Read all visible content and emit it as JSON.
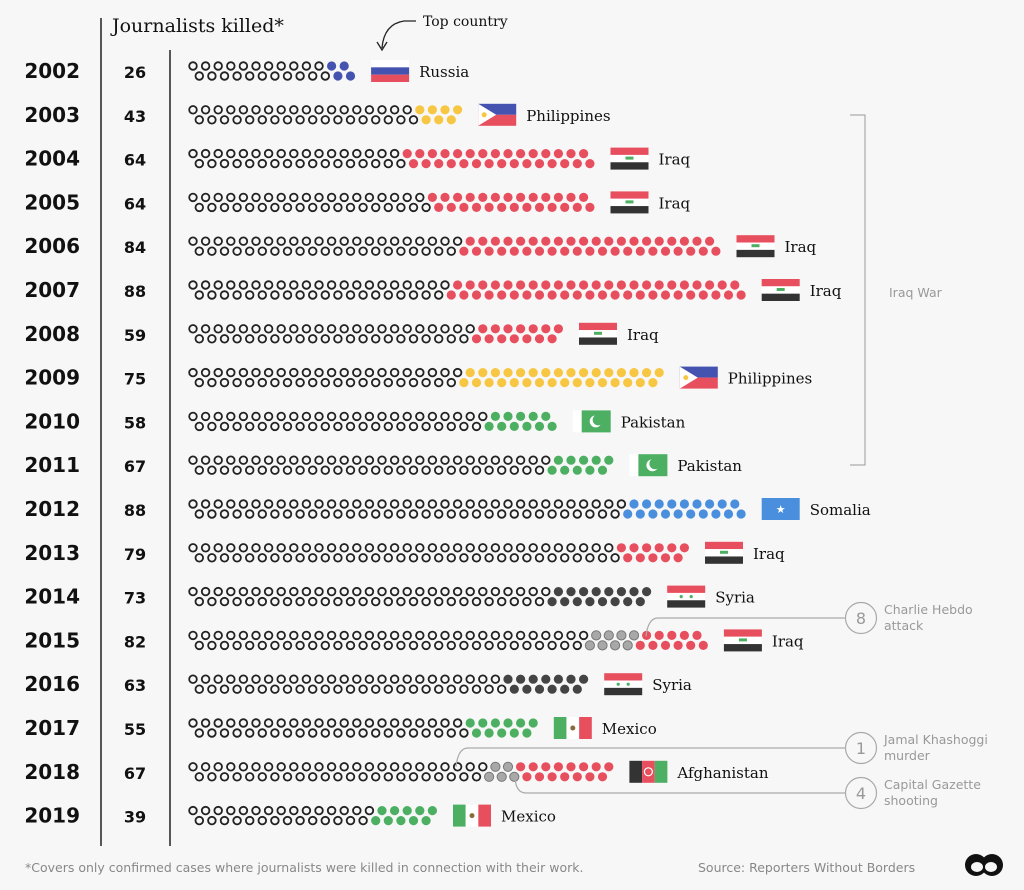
{
  "chart_data": {
    "type": "dot-matrix",
    "title": "Journalists killed*",
    "top_country_label": "Top country",
    "colors": {
      "outline": "#222222",
      "highlight": "#a8a8a8",
      "Russia": "#4452b0",
      "Philippines": "#f7c744",
      "Iraq": "#e84f5e",
      "Pakistan": "#4caf62",
      "Somalia": "#4a8fde",
      "Syria": "#444444",
      "Mexico": "#4caf62",
      "Afghanistan": "#e84f5e"
    },
    "rows": [
      {
        "year": "2002",
        "total": 26,
        "country": "Russia",
        "country_killed": 4
      },
      {
        "year": "2003",
        "total": 43,
        "country": "Philippines",
        "country_killed": 7
      },
      {
        "year": "2004",
        "total": 64,
        "country": "Iraq",
        "country_killed": 30
      },
      {
        "year": "2005",
        "total": 64,
        "country": "Iraq",
        "country_killed": 26
      },
      {
        "year": "2006",
        "total": 84,
        "country": "Iraq",
        "country_killed": 41
      },
      {
        "year": "2007",
        "total": 88,
        "country": "Iraq",
        "country_killed": 47
      },
      {
        "year": "2008",
        "total": 59,
        "country": "Iraq",
        "country_killed": 14
      },
      {
        "year": "2009",
        "total": 75,
        "country": "Philippines",
        "country_killed": 32
      },
      {
        "year": "2010",
        "total": 58,
        "country": "Pakistan",
        "country_killed": 11
      },
      {
        "year": "2011",
        "total": 67,
        "country": "Pakistan",
        "country_killed": 10
      },
      {
        "year": "2012",
        "total": 88,
        "country": "Somalia",
        "country_killed": 19
      },
      {
        "year": "2013",
        "total": 79,
        "country": "Iraq",
        "country_killed": 11
      },
      {
        "year": "2014",
        "total": 73,
        "country": "Syria",
        "country_killed": 16
      },
      {
        "year": "2015",
        "total": 82,
        "country": "Iraq",
        "country_killed": 11,
        "highlighted": 8
      },
      {
        "year": "2016",
        "total": 63,
        "country": "Syria",
        "country_killed": 13
      },
      {
        "year": "2017",
        "total": 55,
        "country": "Mexico",
        "country_killed": 11
      },
      {
        "year": "2018",
        "total": 67,
        "country": "Afghanistan",
        "country_killed": 15,
        "highlighted": 5
      },
      {
        "year": "2019",
        "total": 39,
        "country": "Mexico",
        "country_killed": 10
      }
    ],
    "bracket": {
      "label": "Iraq War",
      "from": "2003",
      "to": "2011"
    },
    "annotations": [
      {
        "year": "2015",
        "count": "8",
        "line1": "Charlie Hebdo",
        "line2": "attack"
      },
      {
        "year": "2018",
        "count": "1",
        "line1": "Jamal Khashoggi",
        "line2": "murder"
      },
      {
        "year": "2018",
        "count": "4",
        "line1": "Capital Gazette",
        "line2": "shooting"
      }
    ]
  },
  "footer": {
    "footnote": "*Covers only confirmed cases where journalists were killed in connection with their work.",
    "source": "Source: Reporters Without Borders"
  }
}
